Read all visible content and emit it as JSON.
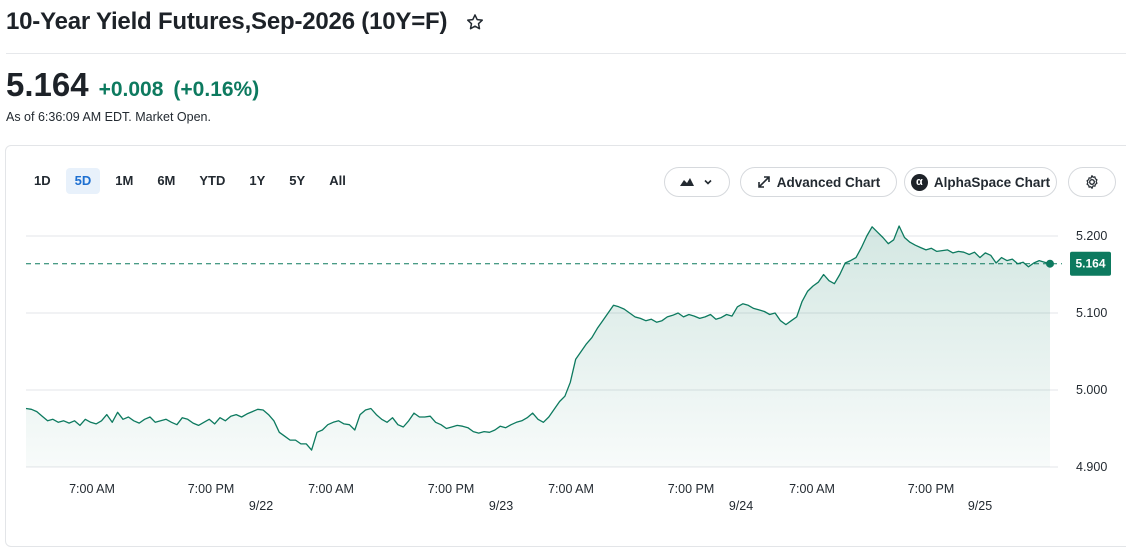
{
  "header": {
    "title": "10-Year Yield Futures,Sep-2026 (10Y=F)",
    "favorite_icon": "star-outline-icon"
  },
  "quote": {
    "price": "5.164",
    "change": "+0.008",
    "change_percent": "(+0.16%)",
    "as_of": "As of 6:36:09 AM EDT. Market Open.",
    "color_up": "#0d7a5f"
  },
  "toolbar": {
    "ranges": [
      "1D",
      "5D",
      "1M",
      "6M",
      "YTD",
      "1Y",
      "5Y",
      "All"
    ],
    "active_range": "5D",
    "chart_type_icon": "mountain-chart-icon",
    "advanced_chart_label": "Advanced Chart",
    "alphaspace_label": "AlphaSpace Chart",
    "alphaspace_badge": "α",
    "settings_icon": "gear-icon"
  },
  "chart_data": {
    "type": "area",
    "line_color": "#0d7a5f",
    "current_value": 5.164,
    "current_label": "5.164",
    "y_ticks": [
      5.2,
      5.1,
      5.0,
      4.9
    ],
    "y_tick_labels": [
      "5.200",
      "5.100",
      "5.000",
      "4.900"
    ],
    "ylim": [
      4.9,
      5.22
    ],
    "x_tick_labels": [
      "7:00 AM",
      "7:00 PM",
      "7:00 AM",
      "7:00 PM",
      "7:00 AM",
      "7:00 PM",
      "7:00 AM",
      "7:00 PM"
    ],
    "date_labels": [
      "9/22",
      "9/23",
      "9/24",
      "9/25"
    ],
    "series": [
      {
        "values": [
          4.976,
          4.975,
          4.972,
          4.966,
          4.96,
          4.962,
          4.958,
          4.96,
          4.957,
          4.96,
          4.954,
          4.962,
          4.958,
          4.956,
          4.96,
          4.968,
          4.958,
          4.971,
          4.962,
          4.965,
          4.96,
          4.957,
          4.962,
          4.965,
          4.958,
          4.96,
          4.962,
          4.958,
          4.955,
          4.964,
          4.962,
          4.957,
          4.954,
          4.958,
          4.962,
          4.956,
          4.964,
          4.96,
          4.966,
          4.968,
          4.965,
          4.969,
          4.972,
          4.975,
          4.974,
          4.968,
          4.96,
          4.945,
          4.94,
          4.935,
          4.935,
          4.93,
          4.93,
          4.922,
          4.945,
          4.948,
          4.955,
          4.958,
          4.96,
          4.956,
          4.955,
          4.948,
          4.968,
          4.974,
          4.976,
          4.968,
          4.962,
          4.958,
          4.964,
          4.955,
          4.952,
          4.96,
          4.97,
          4.965,
          4.965,
          4.966,
          4.958,
          4.955,
          4.95,
          4.952,
          4.954,
          4.953,
          4.951,
          4.946,
          4.944,
          4.946,
          4.945,
          4.948,
          4.953,
          4.951,
          4.955,
          4.958,
          4.96,
          4.964,
          4.97,
          4.962,
          4.958,
          4.965,
          4.975,
          4.985,
          4.992,
          5.01,
          5.04,
          5.05,
          5.06,
          5.068,
          5.08,
          5.09,
          5.1,
          5.11,
          5.108,
          5.105,
          5.1,
          5.095,
          5.093,
          5.09,
          5.092,
          5.088,
          5.09,
          5.095,
          5.097,
          5.1,
          5.095,
          5.098,
          5.096,
          5.093,
          5.095,
          5.098,
          5.092,
          5.094,
          5.098,
          5.096,
          5.108,
          5.112,
          5.11,
          5.106,
          5.104,
          5.102,
          5.098,
          5.1,
          5.09,
          5.085,
          5.09,
          5.095,
          5.115,
          5.128,
          5.135,
          5.14,
          5.15,
          5.142,
          5.138,
          5.15,
          5.165,
          5.168,
          5.172,
          5.185,
          5.2,
          5.212,
          5.205,
          5.198,
          5.19,
          5.195,
          5.213,
          5.198,
          5.192,
          5.188,
          5.185,
          5.182,
          5.184,
          5.18,
          5.181,
          5.182,
          5.178,
          5.18,
          5.179,
          5.176,
          5.179,
          5.172,
          5.178,
          5.175,
          5.165,
          5.172,
          5.168,
          5.17,
          5.164,
          5.166,
          5.16,
          5.165,
          5.168,
          5.166,
          5.164
        ]
      }
    ]
  }
}
